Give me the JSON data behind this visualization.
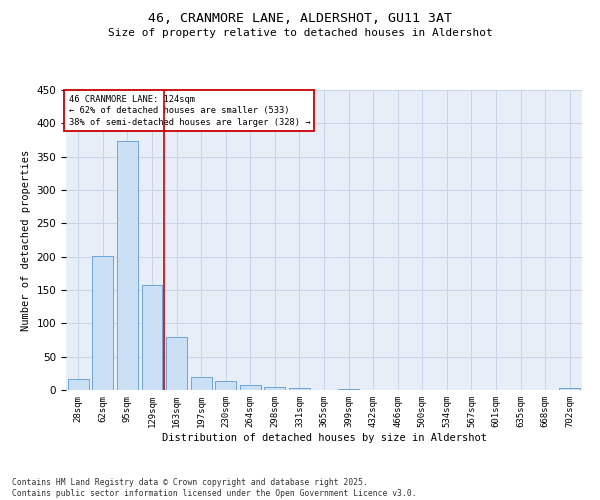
{
  "title1": "46, CRANMORE LANE, ALDERSHOT, GU11 3AT",
  "title2": "Size of property relative to detached houses in Aldershot",
  "xlabel": "Distribution of detached houses by size in Aldershot",
  "ylabel": "Number of detached properties",
  "annotation_line1": "46 CRANMORE LANE: 124sqm",
  "annotation_line2": "← 62% of detached houses are smaller (533)",
  "annotation_line3": "38% of semi-detached houses are larger (328) →",
  "footer1": "Contains HM Land Registry data © Crown copyright and database right 2025.",
  "footer2": "Contains public sector information licensed under the Open Government Licence v3.0.",
  "categories": [
    "28sqm",
    "62sqm",
    "95sqm",
    "129sqm",
    "163sqm",
    "197sqm",
    "230sqm",
    "264sqm",
    "298sqm",
    "331sqm",
    "365sqm",
    "399sqm",
    "432sqm",
    "466sqm",
    "500sqm",
    "534sqm",
    "567sqm",
    "601sqm",
    "635sqm",
    "668sqm",
    "702sqm"
  ],
  "values": [
    16,
    201,
    374,
    158,
    79,
    19,
    13,
    7,
    5,
    3,
    0,
    2,
    0,
    0,
    0,
    0,
    0,
    0,
    0,
    0,
    3
  ],
  "bar_color": "#cce0f5",
  "bar_edge_color": "#5b9bd5",
  "grid_color": "#c8d4e8",
  "bg_color": "#e8eef8",
  "vline_x": 3.5,
  "vline_color": "#cc0000",
  "annotation_box_edge": "#cc0000",
  "ylim": [
    0,
    450
  ],
  "yticks": [
    0,
    50,
    100,
    150,
    200,
    250,
    300,
    350,
    400,
    450
  ]
}
